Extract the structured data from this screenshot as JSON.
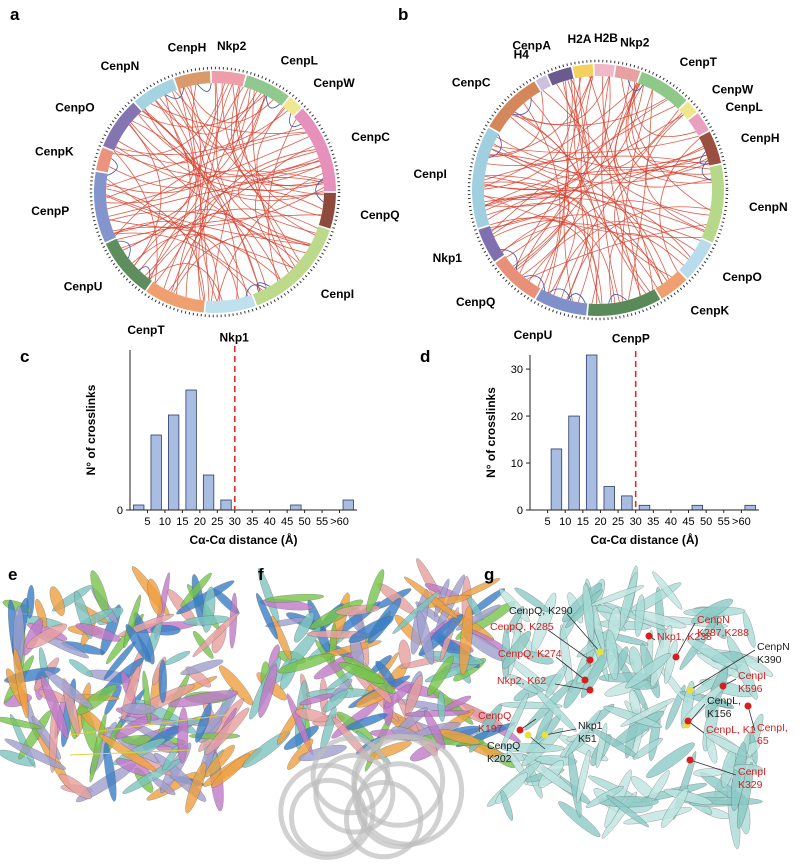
{
  "panel_labels": [
    "a",
    "b",
    "c",
    "d",
    "e",
    "f",
    "g"
  ],
  "circos_a": {
    "segments": [
      "CenpH",
      "Nkp2",
      "CenpL",
      "CenpW",
      "CenpC",
      "CenpQ",
      "CenpI",
      "Nkp1",
      "CenpT",
      "CenpU",
      "CenpP",
      "CenpK",
      "CenpO",
      "CenpN"
    ]
  },
  "circos_b": {
    "segments": [
      "H2A",
      "H2B",
      "Nkp2",
      "CenpT",
      "CenpW",
      "CenpL",
      "CenpH",
      "CenpN",
      "CenpO",
      "CenpK",
      "CenpP",
      "CenpU",
      "CenpQ",
      "Nkp1",
      "CenpI",
      "CenpC",
      "H4",
      "CenpA"
    ]
  },
  "chart_data": [
    {
      "type": "histogram",
      "bins": [
        0,
        5,
        10,
        15,
        20,
        25,
        30,
        35,
        40,
        45,
        50,
        55,
        60,
        65
      ],
      "values": [
        1,
        15,
        19,
        24,
        7,
        2,
        0,
        0,
        0,
        1,
        0,
        0,
        2
      ],
      "color": "#a9bde3",
      "edge_color": "#2b3d63",
      "xlim": [
        0,
        65
      ],
      "ylim": [
        0,
        32
      ],
      "yticks": [
        0
      ],
      "xticks": [
        5,
        10,
        15,
        20,
        25,
        30,
        35,
        40,
        45,
        50,
        55,
        {
          "value": 60,
          "label": ">60"
        }
      ],
      "x_label": "Cα-Cα distance (Å)",
      "y_label": "N° of crosslinks",
      "threshold": 30,
      "threshold_color": "#e02a2a"
    },
    {
      "type": "histogram",
      "bins": [
        0,
        5,
        10,
        15,
        20,
        25,
        30,
        35,
        40,
        45,
        50,
        55,
        60,
        65
      ],
      "values": [
        0,
        13,
        20,
        33,
        5,
        3,
        1,
        0,
        0,
        1,
        0,
        0,
        1
      ],
      "color": "#a9bde3",
      "edge_color": "#2b3d63",
      "xlim": [
        0,
        65
      ],
      "ylim": [
        0,
        33
      ],
      "yticks": [
        0,
        10,
        20,
        30
      ],
      "xticks": [
        5,
        10,
        15,
        20,
        25,
        30,
        35,
        40,
        45,
        50,
        55,
        {
          "value": 60,
          "label": ">60"
        }
      ],
      "x_label": "Cα-Cα distance (Å)",
      "y_label": "N° of crosslinks",
      "threshold": 30,
      "threshold_color": "#e02a2a"
    }
  ],
  "structure_g": {
    "labels": [
      {
        "lines": [
          "Nkp1, K238"
        ],
        "color": "#d62020"
      },
      {
        "lines": [
          "CenpQ, K290"
        ],
        "color": "#222222"
      },
      {
        "lines": [
          "CenpQ, K285"
        ],
        "color": "#d62020"
      },
      {
        "lines": [
          "CenpN",
          "K287,K288"
        ],
        "color": "#d62020"
      },
      {
        "lines": [
          "CenpQ, K274"
        ],
        "color": "#d62020"
      },
      {
        "lines": [
          "CenpN",
          "K390"
        ],
        "color": "#222222"
      },
      {
        "lines": [
          "Nkp2, K62"
        ],
        "color": "#d62020"
      },
      {
        "lines": [
          "CenpI",
          "K596"
        ],
        "color": "#d62020"
      },
      {
        "lines": [
          "CenpL,",
          "K156"
        ],
        "color": "#222222"
      },
      {
        "lines": [
          "CenpQ",
          "K197"
        ],
        "color": "#d62020"
      },
      {
        "lines": [
          "Nkp1",
          "K51"
        ],
        "color": "#222222"
      },
      {
        "lines": [
          "CenpI,",
          "65"
        ],
        "color": "#d62020"
      },
      {
        "lines": [
          "CenpL, K1"
        ],
        "color": "#d62020"
      },
      {
        "lines": [
          "CenpQ",
          "K202"
        ],
        "color": "#222222"
      },
      {
        "lines": [
          "CenpI",
          "K329"
        ],
        "color": "#d62020"
      }
    ]
  }
}
